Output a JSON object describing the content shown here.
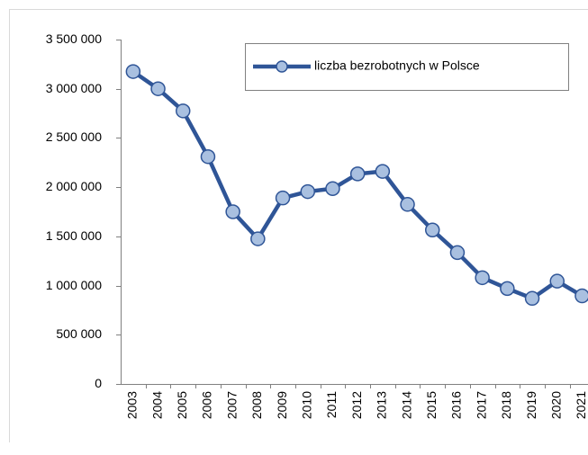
{
  "chart_data": {
    "type": "line",
    "categories": [
      "2003",
      "2004",
      "2005",
      "2006",
      "2007",
      "2008",
      "2009",
      "2010",
      "2011",
      "2012",
      "2013",
      "2014",
      "2015",
      "2016",
      "2017",
      "2018",
      "2019",
      "2020",
      "2021"
    ],
    "series": [
      {
        "name": "liczba bezrobotnych w Polsce",
        "color": "#2f5597",
        "marker_fill": "#a9c0e0",
        "values": [
          3175000,
          3000000,
          2775000,
          2310000,
          1750000,
          1475000,
          1890000,
          1955000,
          1985000,
          2135000,
          2160000,
          1825000,
          1565000,
          1335000,
          1080000,
          970000,
          870000,
          1045000,
          895000
        ]
      }
    ],
    "ylim": [
      0,
      3500000
    ],
    "yticks": [
      0,
      {
        "value": 500000,
        "label": "500 000"
      },
      {
        "value": 1000000,
        "label": "1 000 000"
      },
      {
        "value": 1500000,
        "label": "1 500 000"
      },
      {
        "value": 2000000,
        "label": "2 000 000"
      },
      {
        "value": 2500000,
        "label": "2 500 000"
      },
      {
        "value": 3000000,
        "label": "3 000 000"
      },
      {
        "value": 3500000,
        "label": "3 500 000"
      }
    ],
    "legend": "top-right",
    "grid": false
  }
}
